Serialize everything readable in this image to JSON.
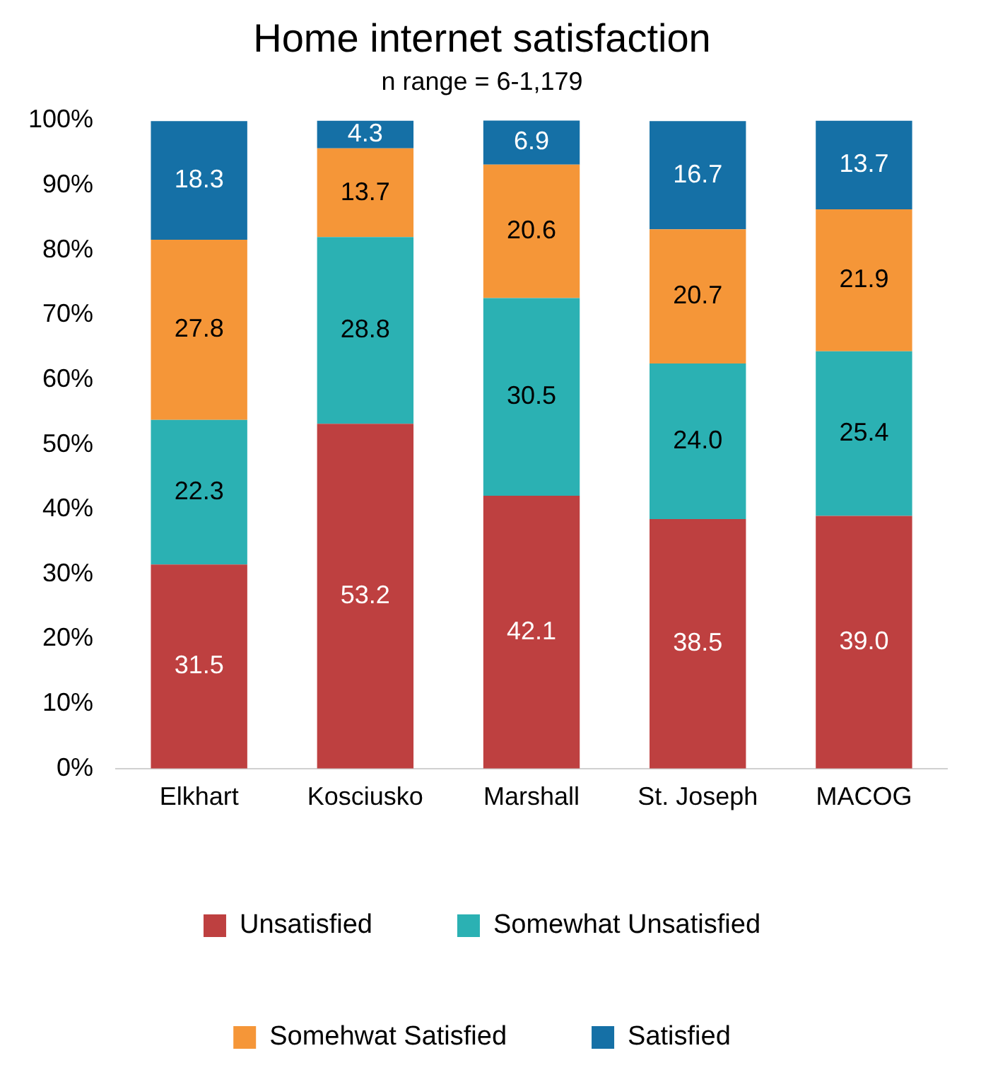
{
  "chart_data": {
    "type": "bar",
    "title": "Home internet satisfaction",
    "subtitle": "n range = 6-1,179",
    "categories": [
      "Elkhart",
      "Kosciusko",
      "Marshall",
      "St. Joseph",
      "MACOG"
    ],
    "stacked": true,
    "legend": "bottom",
    "grid": false,
    "ylim": [
      0,
      100
    ],
    "yticks": [
      {
        "value": 0,
        "label": "0%"
      },
      {
        "value": 10,
        "label": "10%"
      },
      {
        "value": 20,
        "label": "20%"
      },
      {
        "value": 30,
        "label": "30%"
      },
      {
        "value": 40,
        "label": "40%"
      },
      {
        "value": 50,
        "label": "50%"
      },
      {
        "value": 60,
        "label": "60%"
      },
      {
        "value": 70,
        "label": "70%"
      },
      {
        "value": 80,
        "label": "80%"
      },
      {
        "value": 90,
        "label": "90%"
      },
      {
        "value": 100,
        "label": "100%"
      }
    ],
    "series": [
      {
        "name": "Unsatisfied",
        "color": "#be4040",
        "values": [
          31.5,
          53.2,
          42.1,
          38.5,
          39.0
        ],
        "value_labels": [
          "31.5",
          "53.2",
          "42.1",
          "38.5",
          "39.0"
        ]
      },
      {
        "name": "Somewhat Unsatisfied",
        "color": "#2bb1b3",
        "values": [
          22.3,
          28.8,
          30.5,
          24.0,
          25.4
        ],
        "value_labels": [
          "22.3",
          "28.8",
          "30.5",
          "24.0",
          "25.4"
        ]
      },
      {
        "name": "Somehwat Satisfied",
        "color": "#f59638",
        "values": [
          27.8,
          13.7,
          20.6,
          20.7,
          21.9
        ],
        "value_labels": [
          "27.8",
          "13.7",
          "20.6",
          "20.7",
          "21.9"
        ]
      },
      {
        "name": "Satisfied",
        "color": "#1570a6",
        "values": [
          18.3,
          4.3,
          6.9,
          16.7,
          13.7
        ],
        "value_labels": [
          "18.3",
          "4.3",
          "6.9",
          "16.7",
          "13.7"
        ]
      }
    ]
  }
}
